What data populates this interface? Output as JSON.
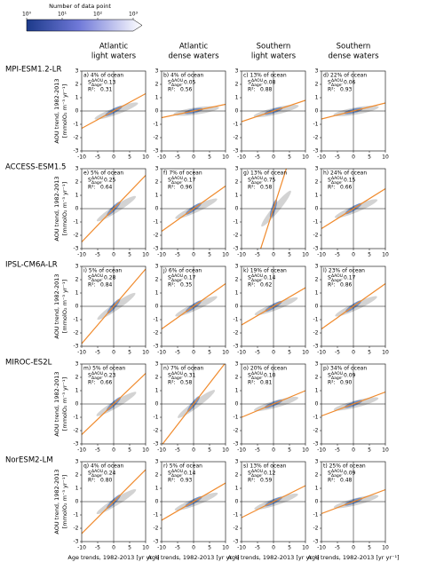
{
  "colorbar": {
    "title": "Number of data point",
    "clim": [
      1,
      1000
    ],
    "log": true,
    "ticks": [
      {
        "value": 1,
        "label": "10⁰"
      },
      {
        "value": 10,
        "label": "10¹"
      },
      {
        "value": 100,
        "label": "10²"
      },
      {
        "value": 1000,
        "label": "10³"
      }
    ]
  },
  "column_titles": [
    [
      "Atlantic",
      "light waters"
    ],
    [
      "Atlantic",
      "dense waters"
    ],
    [
      "Southern",
      "light waters"
    ],
    [
      "Southern",
      "dense waters"
    ]
  ],
  "row_titles": [
    "MPI-ESM1.2-LR",
    "ACCESS-ESM1.5",
    "IPSL-CM6A-LR",
    "MIROC-ES2L",
    "NorESM2-LM"
  ],
  "y_label": [
    "AOU trend, 1982-2013",
    "[mmolO₂ m⁻³ yr⁻¹]"
  ],
  "x_label": "Age trends, 1982-2013 [yr yr⁻¹]",
  "slope_symbol": {
    "base": "S",
    "sup": "ΔAOU",
    "sub": "Δage",
    "sep": ":"
  },
  "r2_symbol": "R²:",
  "chart_data": [
    {
      "type": "scatter",
      "label": "a) 4% of ocean",
      "slope": 0.13,
      "r2": 0.31,
      "xlim": [
        -10,
        10
      ],
      "ylim": [
        -3,
        3
      ],
      "xticks": [
        -10,
        -5,
        0,
        5,
        10
      ],
      "yticks": [
        -3,
        -2,
        -1,
        0,
        1,
        2,
        3
      ]
    },
    {
      "type": "scatter",
      "label": "b) 4% of ocean",
      "slope": 0.05,
      "r2": 0.56,
      "xlim": [
        -10,
        10
      ],
      "ylim": [
        -3,
        3
      ],
      "xticks": [
        -10,
        -5,
        0,
        5,
        10
      ],
      "yticks": [
        -3,
        -2,
        -1,
        0,
        1,
        2,
        3
      ]
    },
    {
      "type": "scatter",
      "label": "c) 13% of ocean",
      "slope": 0.08,
      "r2": 0.88,
      "xlim": [
        -10,
        10
      ],
      "ylim": [
        -3,
        3
      ],
      "xticks": [
        -10,
        -5,
        0,
        5,
        10
      ],
      "yticks": [
        -3,
        -2,
        -1,
        0,
        1,
        2,
        3
      ]
    },
    {
      "type": "scatter",
      "label": "d) 22% of ocean",
      "slope": 0.06,
      "r2": 0.93,
      "xlim": [
        -10,
        10
      ],
      "ylim": [
        -3,
        3
      ],
      "xticks": [
        -10,
        -5,
        0,
        5,
        10
      ],
      "yticks": [
        -3,
        -2,
        -1,
        0,
        1,
        2,
        3
      ]
    },
    {
      "type": "scatter",
      "label": "e) 5% of ocean",
      "slope": 0.25,
      "r2": 0.64,
      "xlim": [
        -10,
        10
      ],
      "ylim": [
        -3,
        3
      ],
      "xticks": [
        -10,
        -5,
        0,
        5,
        10
      ],
      "yticks": [
        -3,
        -2,
        -1,
        0,
        1,
        2,
        3
      ]
    },
    {
      "type": "scatter",
      "label": "f) 7% of ocean",
      "slope": 0.17,
      "r2": 0.96,
      "xlim": [
        -10,
        10
      ],
      "ylim": [
        -3,
        3
      ],
      "xticks": [
        -10,
        -5,
        0,
        5,
        10
      ],
      "yticks": [
        -3,
        -2,
        -1,
        0,
        1,
        2,
        3
      ]
    },
    {
      "type": "scatter",
      "label": "g) 13% of ocean",
      "slope": 0.75,
      "r2": 0.58,
      "xlim": [
        -10,
        10
      ],
      "ylim": [
        -3,
        3
      ],
      "xticks": [
        -10,
        -5,
        0,
        5,
        10
      ],
      "yticks": [
        -3,
        -2,
        -1,
        0,
        1,
        2,
        3
      ]
    },
    {
      "type": "scatter",
      "label": "h) 24% of ocean",
      "slope": 0.15,
      "r2": 0.66,
      "xlim": [
        -10,
        10
      ],
      "ylim": [
        -3,
        3
      ],
      "xticks": [
        -10,
        -5,
        0,
        5,
        10
      ],
      "yticks": [
        -3,
        -2,
        -1,
        0,
        1,
        2,
        3
      ]
    },
    {
      "type": "scatter",
      "label": "i) 5% of ocean",
      "slope": 0.28,
      "r2": 0.84,
      "xlim": [
        -10,
        10
      ],
      "ylim": [
        -3,
        3
      ],
      "xticks": [
        -10,
        -5,
        0,
        5,
        10
      ],
      "yticks": [
        -3,
        -2,
        -1,
        0,
        1,
        2,
        3
      ]
    },
    {
      "type": "scatter",
      "label": "j) 6% of ocean",
      "slope": 0.17,
      "r2": 0.35,
      "xlim": [
        -10,
        10
      ],
      "ylim": [
        -3,
        3
      ],
      "xticks": [
        -10,
        -5,
        0,
        5,
        10
      ],
      "yticks": [
        -3,
        -2,
        -1,
        0,
        1,
        2,
        3
      ]
    },
    {
      "type": "scatter",
      "label": "k) 19% of ocean",
      "slope": 0.14,
      "r2": 0.62,
      "xlim": [
        -10,
        10
      ],
      "ylim": [
        -3,
        3
      ],
      "xticks": [
        -10,
        -5,
        0,
        5,
        10
      ],
      "yticks": [
        -3,
        -2,
        -1,
        0,
        1,
        2,
        3
      ]
    },
    {
      "type": "scatter",
      "label": "l) 23% of ocean",
      "slope": 0.17,
      "r2": 0.86,
      "xlim": [
        -10,
        10
      ],
      "ylim": [
        -3,
        3
      ],
      "xticks": [
        -10,
        -5,
        0,
        5,
        10
      ],
      "yticks": [
        -3,
        -2,
        -1,
        0,
        1,
        2,
        3
      ]
    },
    {
      "type": "scatter",
      "label": "m) 5% of ocean",
      "slope": 0.23,
      "r2": 0.66,
      "xlim": [
        -10,
        10
      ],
      "ylim": [
        -3,
        3
      ],
      "xticks": [
        -10,
        -5,
        0,
        5,
        10
      ],
      "yticks": [
        -3,
        -2,
        -1,
        0,
        1,
        2,
        3
      ]
    },
    {
      "type": "scatter",
      "label": "n) 7% of ocean",
      "slope": 0.31,
      "r2": 0.58,
      "xlim": [
        -10,
        10
      ],
      "ylim": [
        -3,
        3
      ],
      "xticks": [
        -10,
        -5,
        0,
        5,
        10
      ],
      "yticks": [
        -3,
        -2,
        -1,
        0,
        1,
        2,
        3
      ]
    },
    {
      "type": "scatter",
      "label": "o) 20% of ocean",
      "slope": 0.1,
      "slope_label": "0.10",
      "r2": 0.81,
      "xlim": [
        -10,
        10
      ],
      "ylim": [
        -3,
        3
      ],
      "xticks": [
        -10,
        -5,
        0,
        5,
        10
      ],
      "yticks": [
        -3,
        -2,
        -1,
        0,
        1,
        2,
        3
      ]
    },
    {
      "type": "scatter",
      "label": "p) 34% of ocean",
      "slope": 0.09,
      "r2": 0.9,
      "r2_label": "0.90",
      "xlim": [
        -10,
        10
      ],
      "ylim": [
        -3,
        3
      ],
      "xticks": [
        -10,
        -5,
        0,
        5,
        10
      ],
      "yticks": [
        -3,
        -2,
        -1,
        0,
        1,
        2,
        3
      ]
    },
    {
      "type": "scatter",
      "label": "q) 4% of ocean",
      "slope": 0.24,
      "r2": 0.8,
      "r2_label": "0.80",
      "xlim": [
        -10,
        10
      ],
      "ylim": [
        -3,
        3
      ],
      "xticks": [
        -10,
        -5,
        0,
        5,
        10
      ],
      "yticks": [
        -3,
        -2,
        -1,
        0,
        1,
        2,
        3
      ]
    },
    {
      "type": "scatter",
      "label": "r) 5% of ocean",
      "slope": 0.14,
      "r2": 0.93,
      "xlim": [
        -10,
        10
      ],
      "ylim": [
        -3,
        3
      ],
      "xticks": [
        -10,
        -5,
        0,
        5,
        10
      ],
      "yticks": [
        -3,
        -2,
        -1,
        0,
        1,
        2,
        3
      ]
    },
    {
      "type": "scatter",
      "label": "s) 13% of ocean",
      "slope": 0.12,
      "r2": 0.59,
      "xlim": [
        -10,
        10
      ],
      "ylim": [
        -3,
        3
      ],
      "xticks": [
        -10,
        -5,
        0,
        5,
        10
      ],
      "yticks": [
        -3,
        -2,
        -1,
        0,
        1,
        2,
        3
      ]
    },
    {
      "type": "scatter",
      "label": "t) 25% of ocean",
      "slope": 0.09,
      "r2": 0.48,
      "xlim": [
        -10,
        10
      ],
      "ylim": [
        -3,
        3
      ],
      "xticks": [
        -10,
        -5,
        0,
        5,
        10
      ],
      "yticks": [
        -3,
        -2,
        -1,
        0,
        1,
        2,
        3
      ]
    }
  ]
}
